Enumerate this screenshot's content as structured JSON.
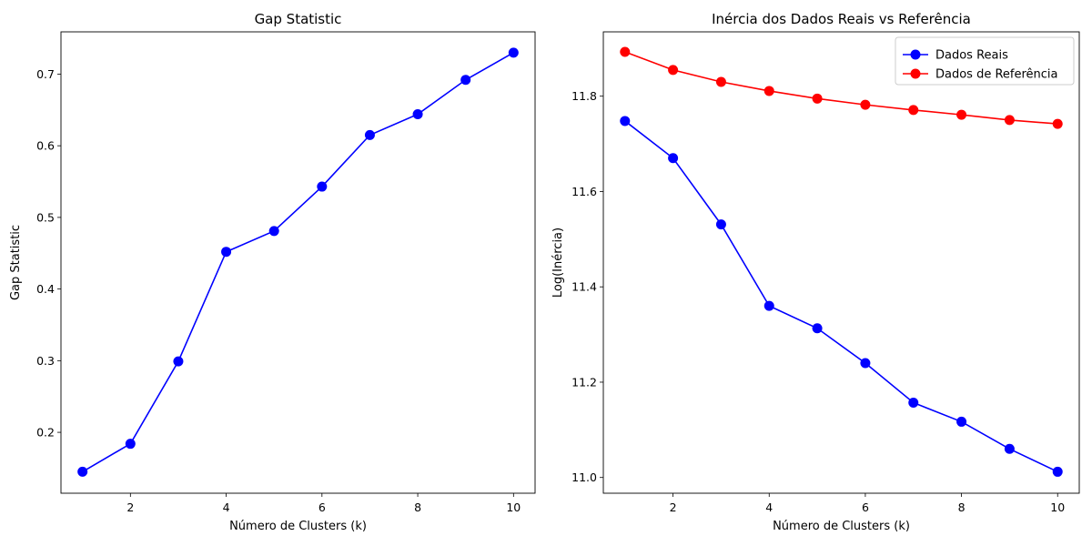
{
  "chart_data": [
    {
      "type": "line",
      "title": "Gap Statistic",
      "xlabel": "Número de Clusters (k)",
      "ylabel": "Gap Statistic",
      "x": [
        1,
        2,
        3,
        4,
        5,
        6,
        7,
        8,
        9,
        10
      ],
      "xlim": [
        0.55,
        10.45
      ],
      "ylim": [
        0.115,
        0.759
      ],
      "xticks": [
        2,
        4,
        6,
        8,
        10
      ],
      "yticks": [
        0.2,
        0.3,
        0.4,
        0.5,
        0.6,
        0.7
      ],
      "ytick_labels": [
        "0.2",
        "0.3",
        "0.4",
        "0.5",
        "0.6",
        "0.7"
      ],
      "grid": false,
      "series": [
        {
          "color": "#0000ff",
          "values": [
            0.145,
            0.184,
            0.299,
            0.452,
            0.481,
            0.543,
            0.615,
            0.644,
            0.692,
            0.73
          ]
        }
      ]
    },
    {
      "type": "line",
      "title": "Inércia dos Dados Reais vs Referência",
      "xlabel": "Número de Clusters (k)",
      "ylabel": "Log(Inércia)",
      "x": [
        1,
        2,
        3,
        4,
        5,
        6,
        7,
        8,
        9,
        10
      ],
      "xlim": [
        0.55,
        10.45
      ],
      "ylim": [
        10.967,
        11.935
      ],
      "xticks": [
        2,
        4,
        6,
        8,
        10
      ],
      "yticks": [
        11.0,
        11.2,
        11.4,
        11.6,
        11.8
      ],
      "ytick_labels": [
        "11.0",
        "11.2",
        "11.4",
        "11.6",
        "11.8"
      ],
      "grid": false,
      "legend": "top-right",
      "series": [
        {
          "name": "Dados Reais",
          "color": "#0000ff",
          "values": [
            11.748,
            11.67,
            11.531,
            11.36,
            11.313,
            11.24,
            11.157,
            11.117,
            11.06,
            11.012
          ]
        },
        {
          "name": "Dados de Referência",
          "color": "#ff0000",
          "values": [
            11.893,
            11.855,
            11.83,
            11.811,
            11.795,
            11.782,
            11.771,
            11.761,
            11.75,
            11.742
          ]
        }
      ]
    }
  ]
}
